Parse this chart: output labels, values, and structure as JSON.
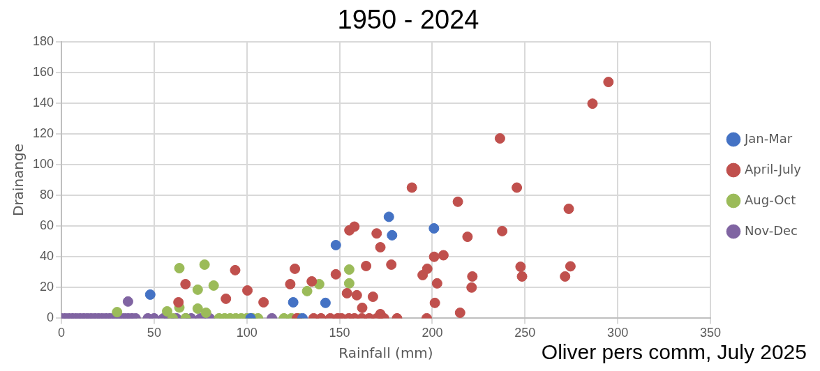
{
  "chart_data": {
    "type": "scatter",
    "title": "1950 - 2024",
    "xlabel": "Rainfall (mm)",
    "ylabel": "Drainange",
    "annotations": [
      "Oliver pers comm, July 2025"
    ],
    "xlim": [
      0,
      350
    ],
    "xticks": [
      0,
      50,
      100,
      150,
      200,
      250,
      300,
      350
    ],
    "ylim": [
      0,
      180
    ],
    "yticks": [
      0,
      20,
      40,
      60,
      80,
      100,
      120,
      140,
      160,
      180
    ],
    "grid": true,
    "legend": "right",
    "marker": "circle",
    "series": [
      {
        "name": "Jan-Mar",
        "color": "#4472c4",
        "x": [
          47.9,
          125,
          142.4,
          148,
          176.6,
          178.3,
          200.9,
          102,
          130
        ],
        "values": [
          15.4,
          10.4,
          10,
          47.6,
          66,
          54,
          58.5,
          0,
          0
        ]
      },
      {
        "name": "April-July",
        "color": "#c0504d",
        "x": [
          63.1,
          66.9,
          88.7,
          93.7,
          100.3,
          109,
          123.4,
          125.9,
          135,
          148,
          154,
          155.3,
          158,
          159.3,
          162.2,
          164.3,
          168,
          170,
          172,
          172,
          177.9,
          189,
          194.8,
          197.3,
          201,
          201.4,
          202.6,
          206,
          213.8,
          215,
          219,
          221.2,
          221.6,
          236.5,
          237.7,
          245.6,
          247.6,
          248.4,
          271.6,
          273.6,
          274.5,
          286.4,
          295,
          127,
          136,
          140,
          145,
          149,
          151,
          155,
          158,
          162,
          166,
          170,
          174,
          181,
          197
        ],
        "values": [
          10.4,
          22.2,
          12.7,
          31.3,
          18.1,
          10.4,
          22.2,
          32.2,
          24,
          28.6,
          16.3,
          57.2,
          59.6,
          15,
          6.8,
          34,
          14,
          55.2,
          46.2,
          2.7,
          34.9,
          85,
          28.1,
          32.2,
          40,
          10,
          22.7,
          41,
          75.8,
          3.6,
          53,
          20,
          27.2,
          117,
          56.7,
          85,
          33.5,
          27.2,
          27.2,
          71.2,
          33.8,
          139.6,
          153.7,
          0,
          0,
          0,
          0,
          0,
          0,
          0,
          0,
          0,
          0,
          0,
          0,
          0,
          0
        ]
      },
      {
        "name": "Aug-Oct",
        "color": "#9bbb59",
        "x": [
          63.6,
          77.2,
          73.5,
          82.1,
          30,
          57,
          63.6,
          73.5,
          78,
          132.5,
          139,
          155.2,
          155.2,
          85,
          88,
          91,
          94,
          97,
          100,
          103,
          106,
          120,
          124,
          128,
          60,
          67
        ],
        "values": [
          32.6,
          34.9,
          18.6,
          21.3,
          4,
          4.5,
          7,
          6.3,
          3.6,
          17.7,
          22.2,
          31.7,
          22.7,
          0,
          0,
          0,
          0,
          0,
          0,
          0,
          0,
          0,
          0,
          0,
          0,
          0
        ]
      },
      {
        "name": "Nov-Dec",
        "color": "#8064a2",
        "x": [
          35.9,
          0,
          2,
          4,
          6,
          8,
          10,
          12,
          14,
          16,
          18,
          20,
          22,
          24,
          26,
          28,
          30,
          32,
          34,
          36,
          38,
          40,
          46.6,
          50,
          55,
          58,
          62,
          67,
          70,
          75,
          80,
          113.5
        ],
        "values": [
          10.9,
          0,
          0,
          0,
          0,
          0,
          0,
          0,
          0,
          0,
          0,
          0,
          0,
          0,
          0,
          0,
          0,
          0,
          0,
          0,
          0,
          0,
          0,
          0,
          0,
          0,
          0,
          0,
          0,
          0,
          0,
          0
        ]
      }
    ]
  }
}
